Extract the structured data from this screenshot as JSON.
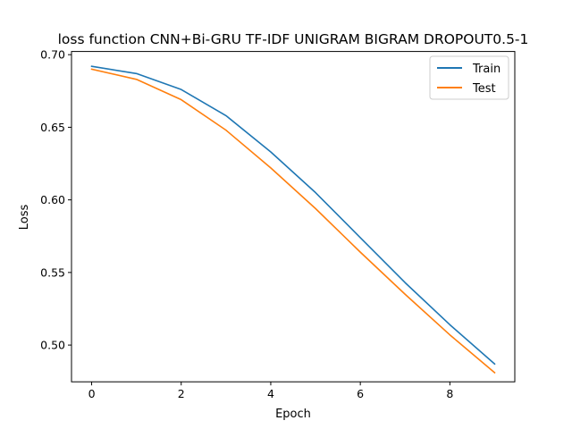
{
  "chart_data": {
    "type": "line",
    "title": "loss function CNN+Bi-GRU TF-IDF UNIGRAM BIGRAM DROPOUT0.5-1",
    "xlabel": "Epoch",
    "ylabel": "Loss",
    "xlim": [
      -0.45,
      9.45
    ],
    "ylim": [
      0.4747,
      0.7022
    ],
    "xticks": [
      0,
      2,
      4,
      6,
      8
    ],
    "xtick_labels": [
      "0",
      "2",
      "4",
      "6",
      "8"
    ],
    "yticks": [
      0.5,
      0.55,
      0.6,
      0.65,
      0.7
    ],
    "ytick_labels": [
      "0.50",
      "0.55",
      "0.60",
      "0.65",
      "0.70"
    ],
    "grid": false,
    "legend_position": "top-right",
    "x": [
      0,
      1,
      2,
      3,
      4,
      5,
      6,
      7,
      8,
      9
    ],
    "series": [
      {
        "name": "Train",
        "color": "#1f77b4",
        "values": [
          0.692,
          0.687,
          0.676,
          0.658,
          0.633,
          0.605,
          0.574,
          0.543,
          0.514,
          0.487
        ]
      },
      {
        "name": "Test",
        "color": "#ff7f0e",
        "values": [
          0.69,
          0.683,
          0.669,
          0.648,
          0.622,
          0.594,
          0.564,
          0.535,
          0.507,
          0.481
        ]
      }
    ]
  }
}
